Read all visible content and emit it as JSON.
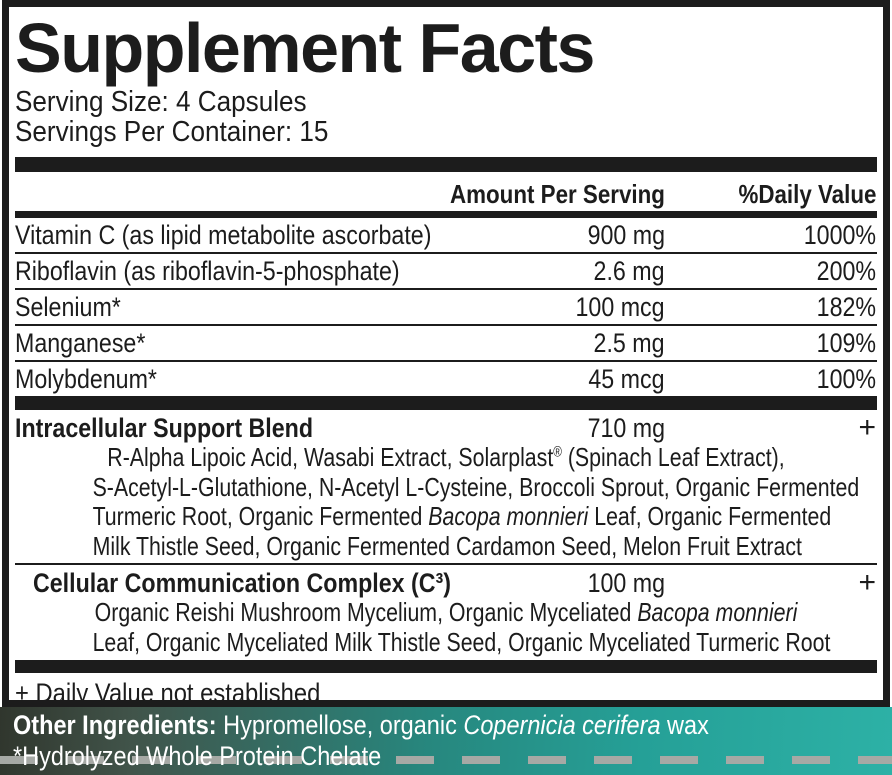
{
  "label": {
    "title": "Supplement Facts",
    "serving_size": "Serving Size: 4 Capsules",
    "servings_per_container": "Servings Per Container: 15",
    "columns": {
      "amount": "Amount Per Serving",
      "daily_value": "%Daily Value"
    },
    "nutrients": [
      {
        "name": "Vitamin C (as lipid metabolite ascorbate)",
        "amount": "900 mg",
        "dv": "1000%"
      },
      {
        "name": "Riboflavin (as riboflavin-5-phosphate)",
        "amount": "2.6 mg",
        "dv": "200%"
      },
      {
        "name": "Selenium*",
        "amount": "100 mcg",
        "dv": "182%"
      },
      {
        "name": "Manganese*",
        "amount": "2.5 mg",
        "dv": "109%"
      },
      {
        "name": "Molybdenum*",
        "amount": "45 mcg",
        "dv": "100%"
      }
    ],
    "blends": [
      {
        "name": "Intracellular Support Blend",
        "amount": "710 mg",
        "dv": "+",
        "ingredient_lines": [
          [
            {
              "t": "R-Alpha Lipoic Acid, Wasabi Extract, Solarplast"
            },
            {
              "t": "®",
              "s": "sup"
            },
            {
              "t": " (Spinach Leaf Extract),"
            }
          ],
          [
            {
              "t": "S-Acetyl-L-Glutathione, N-Acetyl L-Cysteine, Broccoli Sprout, Organic Fermented"
            }
          ],
          [
            {
              "t": "Turmeric Root, Organic Fermented "
            },
            {
              "t": "Bacopa monnieri",
              "s": "i"
            },
            {
              "t": " Leaf, Organic Fermented"
            }
          ],
          [
            {
              "t": "Milk Thistle Seed, Organic Fermented Cardamon Seed, Melon Fruit Extract"
            }
          ]
        ]
      },
      {
        "name": "Cellular Communication Complex (C³)",
        "amount": "100 mg",
        "dv": "+",
        "ingredient_lines": [
          [
            {
              "t": "Organic Reishi Mushroom Mycelium, Organic Myceliated "
            },
            {
              "t": "Bacopa monnieri",
              "s": "i"
            }
          ],
          [
            {
              "t": "Leaf, Organic Myceliated Milk Thistle Seed, Organic Myceliated Turmeric Root"
            }
          ]
        ]
      }
    ],
    "footnote": "+ Daily Value not established"
  },
  "other_ingredients": {
    "lines": [
      [
        {
          "t": "Other Ingredients: ",
          "s": "b"
        },
        {
          "t": "Hypromellose, organic "
        },
        {
          "t": "Copernicia cerifera",
          "s": "i"
        },
        {
          "t": " wax"
        }
      ],
      [
        {
          "t": "*Hydrolyzed Whole Protein Chelate"
        }
      ]
    ],
    "colors": {
      "text": "#ffffff",
      "band_gradient": [
        "#30362d",
        "#41544a",
        "#27877e",
        "#25a097",
        "#2db1a6"
      ],
      "dash": "#a6a9a5"
    }
  },
  "colors": {
    "label_text": "#1c1c1c",
    "label_border": "#1c1c1c",
    "background": "#ffffff"
  }
}
